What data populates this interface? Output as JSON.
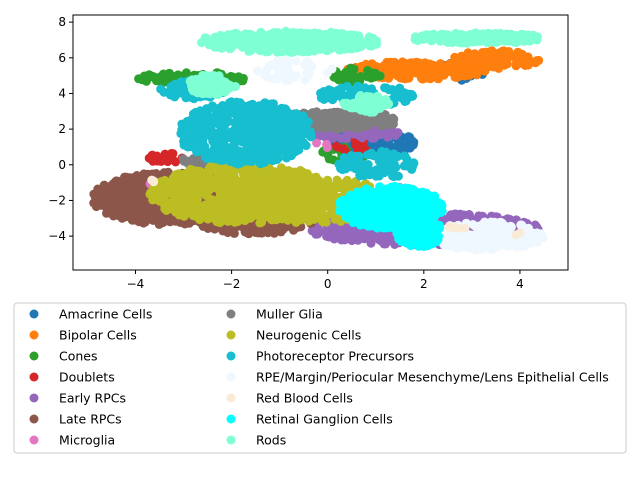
{
  "chart_data": {
    "type": "scatter",
    "title": "",
    "xlabel": "",
    "ylabel": "",
    "xlim": [
      -5.3,
      5.0
    ],
    "ylim": [
      -5.9,
      8.4
    ],
    "xticks": [
      -4,
      -2,
      0,
      2,
      4
    ],
    "yticks": [
      -4,
      -2,
      0,
      2,
      4,
      6,
      8
    ],
    "grid": false,
    "legend_placement": "below",
    "legend_columns": 2,
    "series": [
      {
        "name": "Amacrine Cells",
        "color": "#1f77b4",
        "regions": [
          {
            "cx": 1.0,
            "cy": 1.2,
            "rx": 0.9,
            "ry": 0.7,
            "n": 140
          },
          {
            "cx": 2.7,
            "cy": 5.2,
            "rx": 0.6,
            "ry": 0.5,
            "n": 30
          }
        ]
      },
      {
        "name": "Bipolar Cells",
        "color": "#ff7f0e",
        "regions": [
          {
            "cx": 1.9,
            "cy": 5.3,
            "rx": 1.5,
            "ry": 0.5,
            "n": 200
          },
          {
            "cx": 3.5,
            "cy": 5.9,
            "rx": 0.9,
            "ry": 0.5,
            "n": 90
          }
        ]
      },
      {
        "name": "Cones",
        "color": "#2ca02c",
        "regions": [
          {
            "cx": -2.8,
            "cy": 4.8,
            "rx": 1.2,
            "ry": 0.4,
            "n": 90
          },
          {
            "cx": 0.6,
            "cy": 5.0,
            "rx": 0.5,
            "ry": 0.5,
            "n": 40
          },
          {
            "cx": 0.3,
            "cy": 0.6,
            "rx": 0.5,
            "ry": 0.4,
            "n": 30
          }
        ]
      },
      {
        "name": "Doublets",
        "color": "#d62728",
        "regions": [
          {
            "cx": -3.3,
            "cy": 0.4,
            "rx": 0.5,
            "ry": 0.3,
            "n": 25
          },
          {
            "cx": 0.5,
            "cy": 1.0,
            "rx": 0.4,
            "ry": 0.4,
            "n": 25
          }
        ]
      },
      {
        "name": "Early RPCs",
        "color": "#9467bd",
        "regions": [
          {
            "cx": 2.0,
            "cy": -3.6,
            "rx": 2.4,
            "ry": 0.9,
            "n": 520
          },
          {
            "cx": 0.5,
            "cy": 1.8,
            "rx": 1.0,
            "ry": 0.4,
            "n": 80
          }
        ]
      },
      {
        "name": "Late RPCs",
        "color": "#8c564b",
        "regions": [
          {
            "cx": -3.3,
            "cy": -1.9,
            "rx": 1.6,
            "ry": 1.5,
            "n": 560
          },
          {
            "cx": -1.5,
            "cy": -3.2,
            "rx": 1.2,
            "ry": 0.7,
            "n": 160
          }
        ]
      },
      {
        "name": "Microglia",
        "color": "#e377c2",
        "regions": [
          {
            "cx": -3.6,
            "cy": -1.0,
            "rx": 0.2,
            "ry": 0.2,
            "n": 4
          },
          {
            "cx": 1.6,
            "cy": -1.4,
            "rx": 0.3,
            "ry": 0.2,
            "n": 5
          },
          {
            "cx": -0.1,
            "cy": 1.1,
            "rx": 0.2,
            "ry": 0.2,
            "n": 3
          }
        ]
      },
      {
        "name": "Muller Glia",
        "color": "#7f7f7f",
        "regions": [
          {
            "cx": 0.2,
            "cy": 2.5,
            "rx": 1.3,
            "ry": 0.5,
            "n": 180
          },
          {
            "cx": -2.5,
            "cy": 0.2,
            "rx": 0.6,
            "ry": 0.3,
            "n": 40
          }
        ]
      },
      {
        "name": "Neurogenic Cells",
        "color": "#bcbd22",
        "regions": [
          {
            "cx": -1.8,
            "cy": -1.6,
            "rx": 1.9,
            "ry": 1.7,
            "n": 600
          },
          {
            "cx": -0.2,
            "cy": -2.0,
            "rx": 1.5,
            "ry": 1.3,
            "n": 300
          }
        ]
      },
      {
        "name": "Photoreceptor Precursors",
        "color": "#17becf",
        "regions": [
          {
            "cx": -1.7,
            "cy": 1.8,
            "rx": 1.4,
            "ry": 1.8,
            "n": 520
          },
          {
            "cx": -2.8,
            "cy": 4.2,
            "rx": 0.7,
            "ry": 0.5,
            "n": 80
          },
          {
            "cx": 0.8,
            "cy": 3.9,
            "rx": 1.0,
            "ry": 0.6,
            "n": 90
          },
          {
            "cx": 1.0,
            "cy": 0.0,
            "rx": 0.8,
            "ry": 0.8,
            "n": 90
          }
        ]
      },
      {
        "name": "RPE/Margin/Periocular Mesenchyme/Lens Epithelial Cells",
        "color": "#f0f8ff",
        "regions": [
          {
            "cx": 3.3,
            "cy": -4.0,
            "rx": 1.2,
            "ry": 0.8,
            "n": 260
          },
          {
            "cx": -0.7,
            "cy": 5.3,
            "rx": 0.8,
            "ry": 0.6,
            "n": 40
          }
        ]
      },
      {
        "name": "Red Blood Cells",
        "color": "#faebd7",
        "regions": [
          {
            "cx": 2.7,
            "cy": -3.5,
            "rx": 0.2,
            "ry": 0.2,
            "n": 5
          },
          {
            "cx": 4.0,
            "cy": -3.9,
            "rx": 0.1,
            "ry": 0.1,
            "n": 2
          },
          {
            "cx": -3.6,
            "cy": -0.8,
            "rx": 0.2,
            "ry": 0.2,
            "n": 3
          }
        ]
      },
      {
        "name": "Retinal Ganglion Cells",
        "color": "#00ffff",
        "regions": [
          {
            "cx": 1.3,
            "cy": -2.4,
            "rx": 1.1,
            "ry": 1.2,
            "n": 420
          },
          {
            "cx": 1.9,
            "cy": -3.8,
            "rx": 0.5,
            "ry": 0.8,
            "n": 140
          }
        ]
      },
      {
        "name": "Rods",
        "color": "#7fffd4",
        "regions": [
          {
            "cx": -0.8,
            "cy": 6.9,
            "rx": 1.9,
            "ry": 0.6,
            "n": 320
          },
          {
            "cx": 3.1,
            "cy": 7.1,
            "rx": 1.4,
            "ry": 0.3,
            "n": 200
          },
          {
            "cx": -2.4,
            "cy": 4.5,
            "rx": 0.5,
            "ry": 0.6,
            "n": 80
          },
          {
            "cx": 0.8,
            "cy": 3.4,
            "rx": 0.5,
            "ry": 0.5,
            "n": 50
          }
        ]
      }
    ]
  }
}
